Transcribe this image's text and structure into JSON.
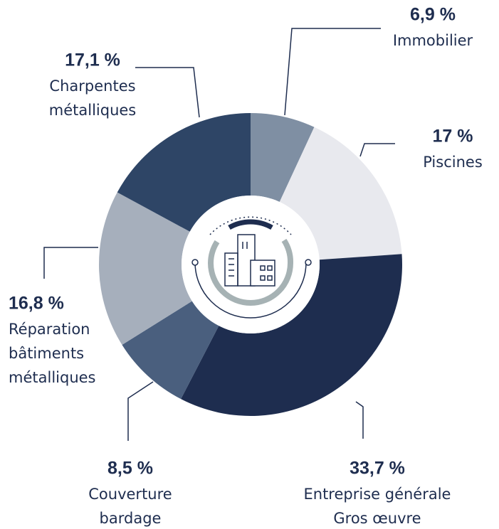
{
  "chart_data": {
    "type": "pie",
    "donut": true,
    "categories": [
      [
        "Immobilier"
      ],
      [
        "Piscines"
      ],
      [
        "Entreprise  générale",
        "Gros œuvre"
      ],
      [
        "Couverture",
        "bardage"
      ],
      [
        "Réparation",
        "bâtiments",
        "métalliques"
      ],
      [
        "Charpentes",
        "métalliques"
      ]
    ],
    "values": [
      6.9,
      17,
      33.7,
      8.5,
      16.8,
      17.1
    ],
    "value_labels": [
      "6,9 %",
      "17 %",
      "33,7 %",
      "8,5 %",
      "16,8 %",
      "17,1 %"
    ],
    "colors": [
      "#7f8fa3",
      "#e8e9ee",
      "#1e2d4f",
      "#4a5f7e",
      "#a6afbc",
      "#2e4566"
    ]
  }
}
